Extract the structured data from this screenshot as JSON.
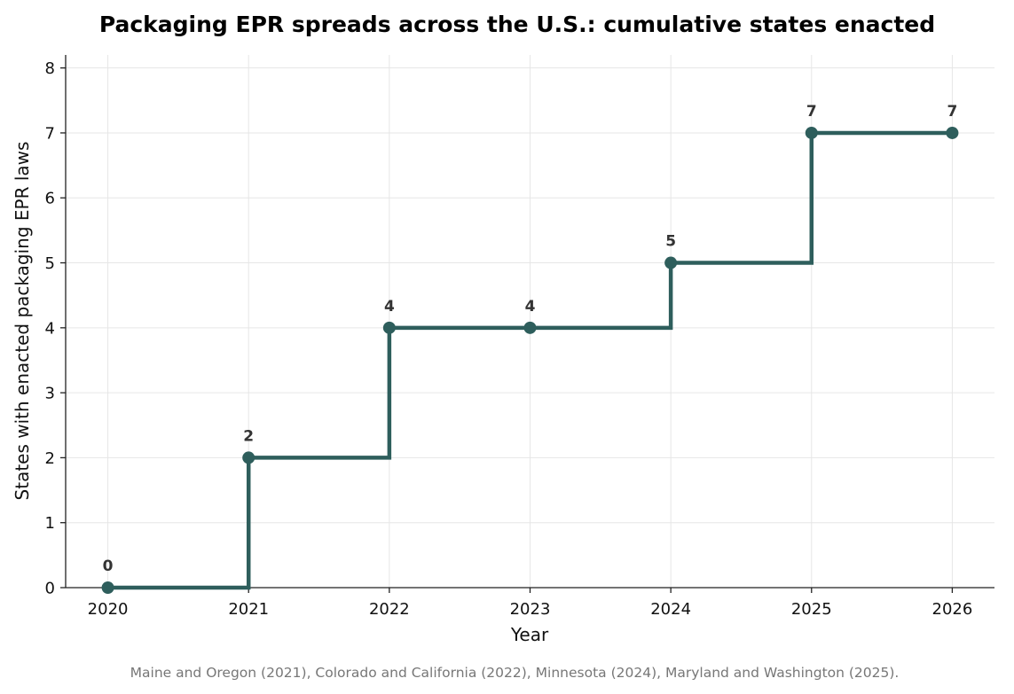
{
  "chart_data": {
    "type": "line",
    "step": "post",
    "title": "Packaging EPR spreads across the U.S.: cumulative states enacted",
    "xlabel": "Year",
    "ylabel": "States with enacted packaging EPR laws",
    "x": [
      2020,
      2021,
      2022,
      2023,
      2024,
      2025,
      2026
    ],
    "series": [
      {
        "values": [
          0,
          2,
          4,
          4,
          5,
          7,
          7
        ]
      }
    ],
    "data_labels": [
      "0",
      "2",
      "4",
      "4",
      "5",
      "7",
      "7"
    ],
    "xticks": [
      "2020",
      "2021",
      "2022",
      "2023",
      "2024",
      "2025",
      "2026"
    ],
    "yticks": [
      "0",
      "1",
      "2",
      "3",
      "4",
      "5",
      "6",
      "7",
      "8"
    ],
    "xlim": [
      2019.7,
      2026.3
    ],
    "ylim": [
      0,
      8.2
    ],
    "grid": true,
    "line_color": "#2e5e5c",
    "caption": "Maine and Oregon (2021), Colorado and California (2022), Minnesota (2024), Maryland and Washington (2025)."
  }
}
